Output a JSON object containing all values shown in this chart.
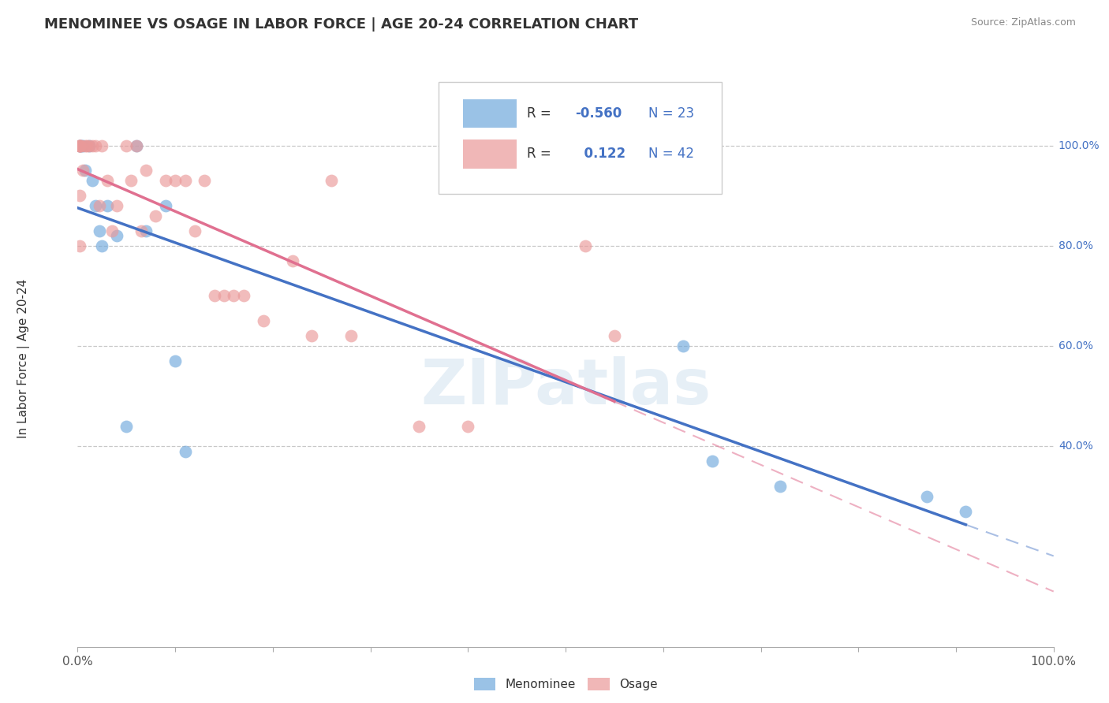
{
  "title": "MENOMINEE VS OSAGE IN LABOR FORCE | AGE 20-24 CORRELATION CHART",
  "source": "Source: ZipAtlas.com",
  "ylabel": "In Labor Force | Age 20-24",
  "watermark": "ZIPatlas",
  "menominee_x": [
    0.002,
    0.002,
    0.004,
    0.005,
    0.008,
    0.012,
    0.015,
    0.018,
    0.022,
    0.025,
    0.03,
    0.04,
    0.05,
    0.06,
    0.07,
    0.09,
    0.1,
    0.11,
    0.62,
    0.65,
    0.72,
    0.87,
    0.91
  ],
  "menominee_y": [
    1.0,
    1.0,
    1.0,
    1.0,
    0.95,
    1.0,
    0.93,
    0.88,
    0.83,
    0.8,
    0.88,
    0.82,
    0.44,
    1.0,
    0.83,
    0.88,
    0.57,
    0.39,
    0.6,
    0.37,
    0.32,
    0.3,
    0.27
  ],
  "osage_x": [
    0.002,
    0.002,
    0.002,
    0.002,
    0.002,
    0.002,
    0.004,
    0.005,
    0.008,
    0.009,
    0.012,
    0.015,
    0.018,
    0.022,
    0.025,
    0.03,
    0.035,
    0.04,
    0.05,
    0.055,
    0.06,
    0.065,
    0.07,
    0.08,
    0.09,
    0.1,
    0.11,
    0.12,
    0.13,
    0.14,
    0.15,
    0.16,
    0.17,
    0.19,
    0.22,
    0.24,
    0.26,
    0.28,
    0.35,
    0.4,
    0.52,
    0.55
  ],
  "osage_y": [
    1.0,
    1.0,
    1.0,
    1.0,
    0.9,
    0.8,
    1.0,
    0.95,
    1.0,
    1.0,
    1.0,
    1.0,
    1.0,
    0.88,
    1.0,
    0.93,
    0.83,
    0.88,
    1.0,
    0.93,
    1.0,
    0.83,
    0.95,
    0.86,
    0.93,
    0.93,
    0.93,
    0.83,
    0.93,
    0.7,
    0.7,
    0.7,
    0.7,
    0.65,
    0.77,
    0.62,
    0.93,
    0.62,
    0.44,
    0.44,
    0.8,
    0.62
  ],
  "menominee_color": "#6fa8dc",
  "osage_color": "#ea9999",
  "line_blue": "#4472c4",
  "line_pink": "#e07090",
  "menominee_r": -0.56,
  "menominee_n": 23,
  "osage_r": 0.122,
  "osage_n": 42,
  "xlim": [
    0.0,
    1.0
  ],
  "ylim": [
    0.0,
    1.15
  ],
  "grid_yticks": [
    0.4,
    0.6,
    0.8,
    1.0
  ],
  "right_ytick_labels": [
    "40.0%",
    "60.0%",
    "80.0%",
    "100.0%"
  ],
  "grid_color": "#bbbbbb",
  "background_color": "#ffffff",
  "figure_bg": "#ffffff"
}
